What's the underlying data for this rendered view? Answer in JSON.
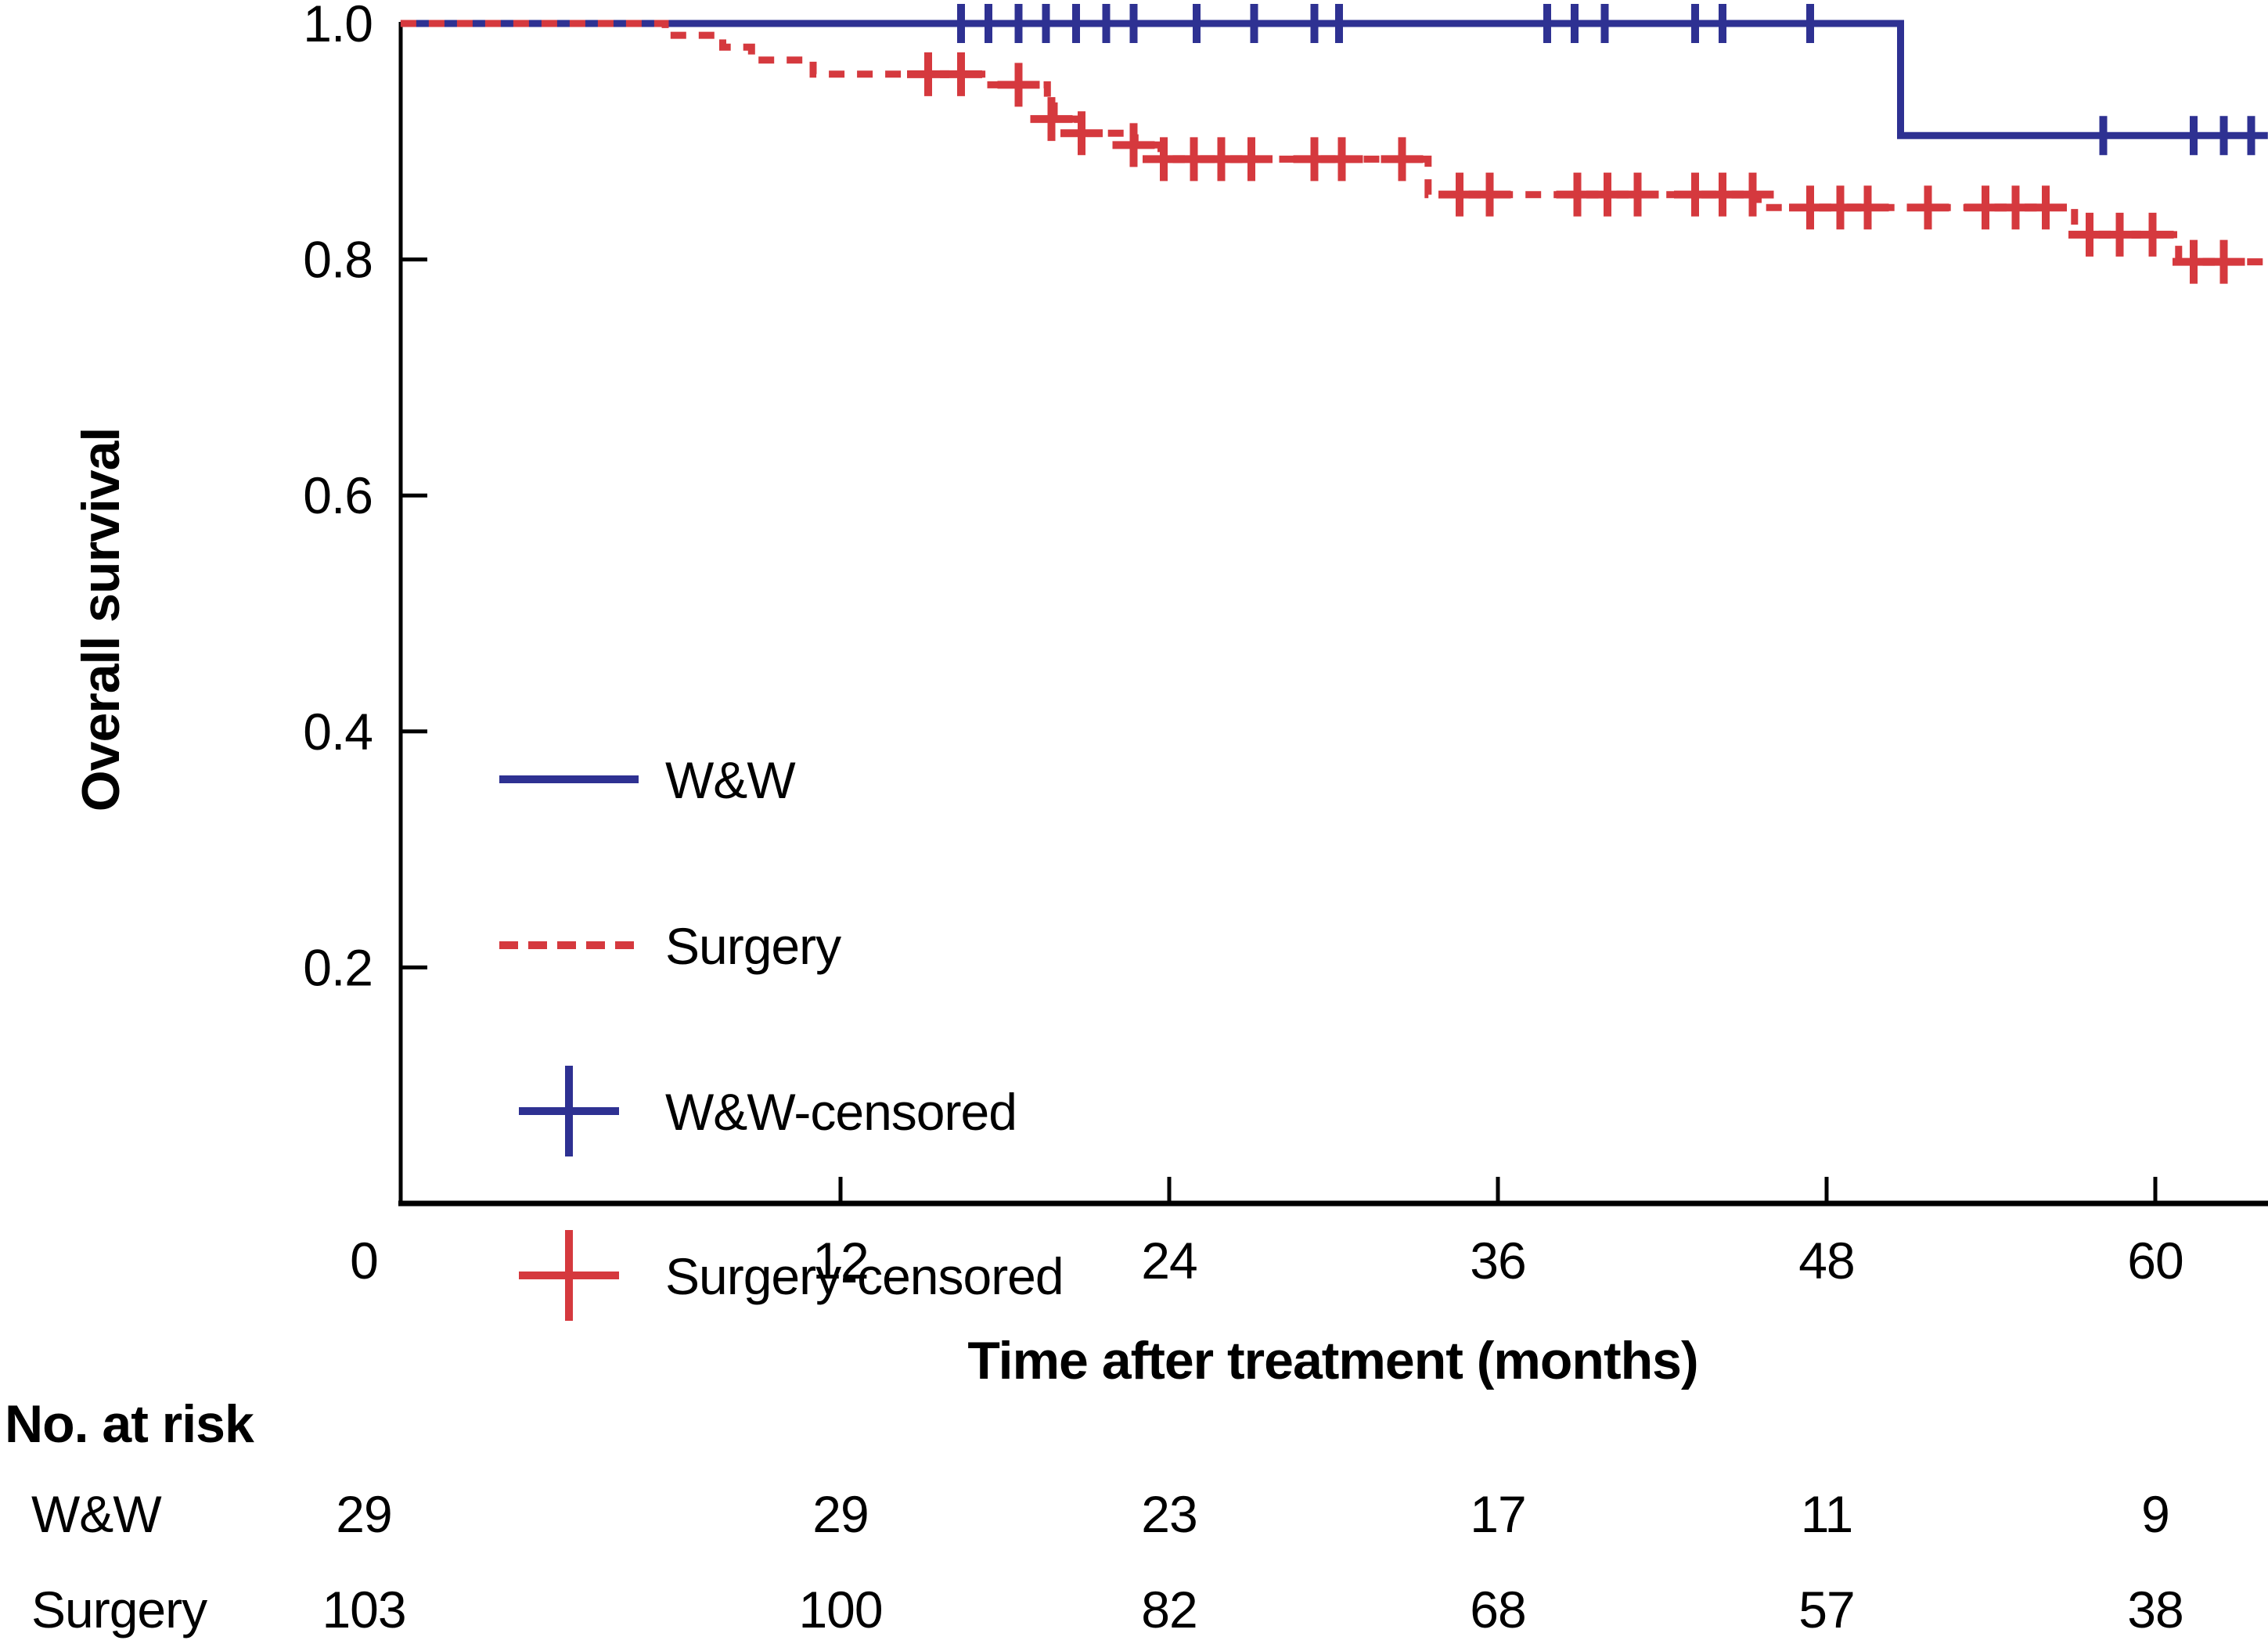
{
  "colors": {
    "ww": "#2e3192",
    "surgery": "#d5393e",
    "axis": "#000000",
    "text": "#000000",
    "background": "#ffffff"
  },
  "y_axis": {
    "title": "Overall survival",
    "ticks": [
      {
        "label": "1.0",
        "s": 1.0
      },
      {
        "label": "0.8",
        "s": 0.8
      },
      {
        "label": "0.6",
        "s": 0.6
      },
      {
        "label": "0.4",
        "s": 0.4
      },
      {
        "label": "0.2",
        "s": 0.2
      }
    ]
  },
  "x_axis": {
    "title": "Time after treatment (months)",
    "ticks": [
      {
        "label": "0",
        "m": 0
      },
      {
        "label": "12",
        "m": 12
      },
      {
        "label": "24",
        "m": 24
      },
      {
        "label": "36",
        "m": 36
      },
      {
        "label": "48",
        "m": 48
      },
      {
        "label": "60",
        "m": 60
      }
    ]
  },
  "legend": {
    "items": [
      {
        "label": "W&W",
        "series": "ww",
        "marker": "line"
      },
      {
        "label": "Surgery",
        "series": "surgery",
        "marker": "dashed-line"
      },
      {
        "label": "W&W-censored",
        "series": "ww",
        "marker": "plus"
      },
      {
        "label": "Surgery-censored",
        "series": "surgery",
        "marker": "plus"
      }
    ]
  },
  "chart_data": {
    "type": "line",
    "subtype": "kaplan-meier-step",
    "title": "",
    "xlabel": "Time after treatment (months)",
    "ylabel": "Overall survival",
    "x_range_months": [
      0,
      64
    ],
    "y_range": [
      0,
      1.0
    ],
    "grid": false,
    "legend_position": "center-left",
    "series": [
      {
        "name": "W&W",
        "line_style": "solid",
        "color_role": "ww",
        "steps": [
          {
            "t": -4.06,
            "s": 1.0
          },
          {
            "t": 50.7,
            "s": 0.905
          }
        ],
        "end_t": 64.11,
        "censored": [
          {
            "t": 16.4,
            "s": 1.0
          },
          {
            "t": 17.4,
            "s": 1.0
          },
          {
            "t": 18.5,
            "s": 1.0
          },
          {
            "t": 19.5,
            "s": 1.0
          },
          {
            "t": 20.6,
            "s": 1.0
          },
          {
            "t": 21.7,
            "s": 1.0
          },
          {
            "t": 22.7,
            "s": 1.0
          },
          {
            "t": 25.0,
            "s": 1.0
          },
          {
            "t": 27.1,
            "s": 1.0
          },
          {
            "t": 29.3,
            "s": 1.0
          },
          {
            "t": 30.2,
            "s": 1.0
          },
          {
            "t": 37.8,
            "s": 1.0
          },
          {
            "t": 38.8,
            "s": 1.0
          },
          {
            "t": 39.9,
            "s": 1.0
          },
          {
            "t": 43.2,
            "s": 1.0
          },
          {
            "t": 44.2,
            "s": 1.0
          },
          {
            "t": 47.4,
            "s": 1.0
          },
          {
            "t": 58.1,
            "s": 0.905
          },
          {
            "t": 61.4,
            "s": 0.905
          },
          {
            "t": 62.5,
            "s": 0.905
          },
          {
            "t": 63.5,
            "s": 0.905
          }
        ]
      },
      {
        "name": "Surgery",
        "line_style": "dashed",
        "color_role": "surgery",
        "steps": [
          {
            "t": -4.06,
            "s": 1.0
          },
          {
            "t": 5.6,
            "s": 0.99
          },
          {
            "t": 7.7,
            "s": 0.98
          },
          {
            "t": 8.75,
            "s": 0.969
          },
          {
            "t": 11.0,
            "s": 0.957
          },
          {
            "t": 17.35,
            "s": 0.948
          },
          {
            "t": 19.55,
            "s": 0.936
          },
          {
            "t": 19.8,
            "s": 0.919
          },
          {
            "t": 20.65,
            "s": 0.907
          },
          {
            "t": 22.75,
            "s": 0.897
          },
          {
            "t": 23.7,
            "s": 0.885
          },
          {
            "t": 33.45,
            "s": 0.855
          },
          {
            "t": 45.5,
            "s": 0.844
          },
          {
            "t": 57.05,
            "s": 0.821
          },
          {
            "t": 60.85,
            "s": 0.798
          }
        ],
        "end_t": 64.11,
        "censored": [
          {
            "t": 15.2,
            "s": 0.957
          },
          {
            "t": 16.4,
            "s": 0.957
          },
          {
            "t": 18.5,
            "s": 0.948
          },
          {
            "t": 19.7,
            "s": 0.919
          },
          {
            "t": 20.8,
            "s": 0.907
          },
          {
            "t": 22.7,
            "s": 0.897
          },
          {
            "t": 23.8,
            "s": 0.885
          },
          {
            "t": 24.9,
            "s": 0.885
          },
          {
            "t": 25.9,
            "s": 0.885
          },
          {
            "t": 27.0,
            "s": 0.885
          },
          {
            "t": 29.3,
            "s": 0.885
          },
          {
            "t": 30.3,
            "s": 0.885
          },
          {
            "t": 32.5,
            "s": 0.885
          },
          {
            "t": 34.6,
            "s": 0.855
          },
          {
            "t": 35.7,
            "s": 0.855
          },
          {
            "t": 38.9,
            "s": 0.855
          },
          {
            "t": 40.0,
            "s": 0.855
          },
          {
            "t": 41.1,
            "s": 0.855
          },
          {
            "t": 43.2,
            "s": 0.855
          },
          {
            "t": 44.2,
            "s": 0.855
          },
          {
            "t": 45.3,
            "s": 0.855
          },
          {
            "t": 47.4,
            "s": 0.844
          },
          {
            "t": 48.5,
            "s": 0.844
          },
          {
            "t": 49.5,
            "s": 0.844
          },
          {
            "t": 51.7,
            "s": 0.844
          },
          {
            "t": 53.8,
            "s": 0.844
          },
          {
            "t": 54.9,
            "s": 0.844
          },
          {
            "t": 56.0,
            "s": 0.844
          },
          {
            "t": 57.6,
            "s": 0.821
          },
          {
            "t": 58.7,
            "s": 0.821
          },
          {
            "t": 59.9,
            "s": 0.821
          },
          {
            "t": 61.4,
            "s": 0.798
          },
          {
            "t": 62.5,
            "s": 0.798
          }
        ]
      }
    ]
  },
  "risk_table": {
    "title": "No. at risk",
    "columns_months": [
      0,
      12,
      24,
      36,
      48,
      60
    ],
    "rows": [
      {
        "label": "W&W",
        "values": [
          "29",
          "29",
          "23",
          "17",
          "11",
          "9"
        ]
      },
      {
        "label": "Surgery",
        "values": [
          "103",
          "100",
          "82",
          "68",
          "57",
          "38"
        ]
      }
    ]
  }
}
